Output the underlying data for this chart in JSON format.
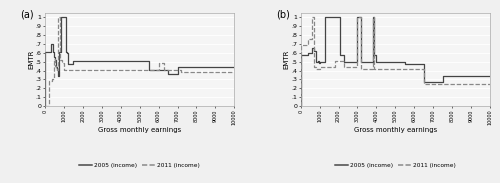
{
  "panel_a": {
    "title": "(a)",
    "solid_2005": [
      [
        0,
        0.0
      ],
      [
        0,
        0.61
      ],
      [
        300,
        0.61
      ],
      [
        300,
        0.7
      ],
      [
        400,
        0.7
      ],
      [
        400,
        0.61
      ],
      [
        450,
        0.61
      ],
      [
        450,
        0.55
      ],
      [
        550,
        0.55
      ],
      [
        550,
        0.52
      ],
      [
        600,
        0.52
      ],
      [
        600,
        0.44
      ],
      [
        650,
        0.44
      ],
      [
        650,
        0.41
      ],
      [
        700,
        0.41
      ],
      [
        700,
        0.34
      ],
      [
        750,
        0.34
      ],
      [
        750,
        0.61
      ],
      [
        850,
        0.61
      ],
      [
        850,
        1.0
      ],
      [
        950,
        1.0
      ],
      [
        1000,
        1.0
      ],
      [
        1050,
        1.0
      ],
      [
        1100,
        1.0
      ],
      [
        1100,
        0.61
      ],
      [
        1150,
        0.61
      ],
      [
        1150,
        0.6
      ],
      [
        1200,
        0.6
      ],
      [
        1200,
        0.47
      ],
      [
        1500,
        0.47
      ],
      [
        1500,
        0.51
      ],
      [
        4500,
        0.51
      ],
      [
        4500,
        0.51
      ],
      [
        5500,
        0.51
      ],
      [
        5500,
        0.41
      ],
      [
        6500,
        0.41
      ],
      [
        6500,
        0.36
      ],
      [
        7000,
        0.36
      ],
      [
        7000,
        0.44
      ],
      [
        7500,
        0.44
      ],
      [
        7500,
        0.44
      ],
      [
        10000,
        0.44
      ]
    ],
    "dashed_2011": [
      [
        0,
        0.0
      ],
      [
        0,
        0.0
      ],
      [
        200,
        0.0
      ],
      [
        200,
        0.28
      ],
      [
        350,
        0.28
      ],
      [
        350,
        0.31
      ],
      [
        450,
        0.31
      ],
      [
        450,
        0.53
      ],
      [
        550,
        0.53
      ],
      [
        550,
        0.45
      ],
      [
        600,
        0.45
      ],
      [
        600,
        0.42
      ],
      [
        650,
        0.42
      ],
      [
        650,
        0.41
      ],
      [
        700,
        0.41
      ],
      [
        700,
        1.0
      ],
      [
        800,
        1.0
      ],
      [
        800,
        0.52
      ],
      [
        900,
        0.52
      ],
      [
        900,
        0.48
      ],
      [
        1000,
        0.48
      ],
      [
        1000,
        0.41
      ],
      [
        1200,
        0.41
      ],
      [
        1200,
        0.41
      ],
      [
        6000,
        0.41
      ],
      [
        6000,
        0.49
      ],
      [
        6300,
        0.49
      ],
      [
        6300,
        0.41
      ],
      [
        6800,
        0.41
      ],
      [
        6800,
        0.41
      ],
      [
        7200,
        0.41
      ],
      [
        7200,
        0.38
      ],
      [
        10000,
        0.38
      ]
    ]
  },
  "panel_b": {
    "title": "(b)",
    "solid_2005": [
      [
        0,
        0.0
      ],
      [
        0,
        0.58
      ],
      [
        400,
        0.58
      ],
      [
        400,
        0.6
      ],
      [
        600,
        0.6
      ],
      [
        600,
        0.65
      ],
      [
        700,
        0.65
      ],
      [
        700,
        0.62
      ],
      [
        800,
        0.62
      ],
      [
        800,
        0.5
      ],
      [
        900,
        0.5
      ],
      [
        900,
        0.51
      ],
      [
        950,
        0.51
      ],
      [
        950,
        0.49
      ],
      [
        1000,
        0.49
      ],
      [
        1000,
        0.5
      ],
      [
        1300,
        0.5
      ],
      [
        1300,
        1.0
      ],
      [
        1400,
        1.0
      ],
      [
        1400,
        1.0
      ],
      [
        2000,
        1.0
      ],
      [
        2000,
        1.0
      ],
      [
        2100,
        1.0
      ],
      [
        2100,
        0.58
      ],
      [
        2300,
        0.58
      ],
      [
        2300,
        0.5
      ],
      [
        3000,
        0.5
      ],
      [
        3000,
        1.0
      ],
      [
        3200,
        1.0
      ],
      [
        3200,
        0.5
      ],
      [
        3500,
        0.5
      ],
      [
        3500,
        0.5
      ],
      [
        3800,
        0.5
      ],
      [
        3800,
        1.0
      ],
      [
        3900,
        1.0
      ],
      [
        3900,
        0.58
      ],
      [
        4000,
        0.58
      ],
      [
        4000,
        0.5
      ],
      [
        5500,
        0.5
      ],
      [
        5500,
        0.47
      ],
      [
        6500,
        0.47
      ],
      [
        6500,
        0.27
      ],
      [
        7500,
        0.27
      ],
      [
        7500,
        0.34
      ],
      [
        10000,
        0.34
      ]
    ],
    "dashed_2011": [
      [
        0,
        0.0
      ],
      [
        0,
        0.69
      ],
      [
        400,
        0.69
      ],
      [
        400,
        0.75
      ],
      [
        600,
        0.75
      ],
      [
        600,
        1.0
      ],
      [
        700,
        1.0
      ],
      [
        700,
        0.44
      ],
      [
        800,
        0.44
      ],
      [
        800,
        0.42
      ],
      [
        900,
        0.42
      ],
      [
        900,
        0.42
      ],
      [
        1000,
        0.42
      ],
      [
        1000,
        0.44
      ],
      [
        1300,
        0.44
      ],
      [
        1300,
        0.44
      ],
      [
        1800,
        0.44
      ],
      [
        1800,
        0.51
      ],
      [
        2300,
        0.51
      ],
      [
        2300,
        0.44
      ],
      [
        3000,
        0.44
      ],
      [
        3000,
        1.0
      ],
      [
        3200,
        1.0
      ],
      [
        3200,
        0.42
      ],
      [
        3500,
        0.42
      ],
      [
        3500,
        0.42
      ],
      [
        3800,
        0.42
      ],
      [
        3800,
        1.0
      ],
      [
        3900,
        1.0
      ],
      [
        3900,
        0.42
      ],
      [
        4000,
        0.42
      ],
      [
        4000,
        0.42
      ],
      [
        6000,
        0.42
      ],
      [
        6000,
        0.42
      ],
      [
        6500,
        0.42
      ],
      [
        6500,
        0.25
      ],
      [
        7500,
        0.25
      ],
      [
        7500,
        0.25
      ],
      [
        10000,
        0.25
      ]
    ]
  },
  "xlim": [
    0,
    10000
  ],
  "ylim": [
    0,
    1.05
  ],
  "yticks": [
    0.0,
    0.1,
    0.2,
    0.3,
    0.4,
    0.5,
    0.6,
    0.7,
    0.8,
    0.9,
    1.0
  ],
  "ytick_labels": [
    "0",
    ".1",
    ".2",
    ".3",
    ".4",
    ".5",
    ".6",
    ".7",
    ".8",
    ".9",
    "1"
  ],
  "xticks": [
    0,
    1000,
    2000,
    3000,
    4000,
    5000,
    6000,
    7000,
    8000,
    9000,
    10000
  ],
  "xtick_labels": [
    "0",
    "1000",
    "2000",
    "3000",
    "4000",
    "5000",
    "6000",
    "7000",
    "8000",
    "9000",
    "10000"
  ],
  "xlabel": "Gross monthly earnings",
  "ylabel": "EMTR",
  "solid_color": "#444444",
  "dashed_color": "#888888",
  "bg_color": "#f5f5f5",
  "fig_color": "#f0f0f0",
  "legend_labels": [
    "2005 (income)",
    "2011 (income)"
  ],
  "line_width": 0.9
}
